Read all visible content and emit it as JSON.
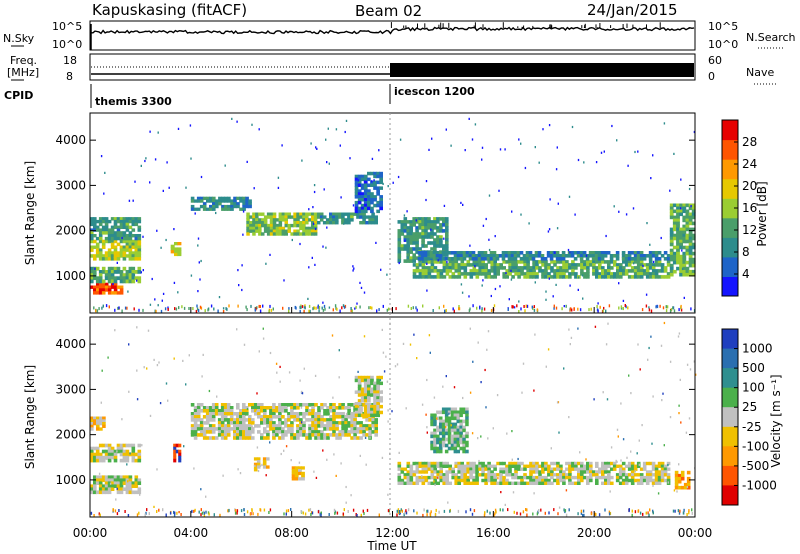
{
  "header": {
    "station": "Kapuskasing (fitACF)",
    "beam": "Beam 02",
    "date": "24/Jan/2015"
  },
  "noise_panel": {
    "left_label": "N.Sky",
    "right_label": "N.Search",
    "left_ticks": [
      "10^5",
      "10^0"
    ],
    "right_ticks": [
      "10^5",
      "10^0"
    ]
  },
  "freq_panel": {
    "left_label_line1": "Freq.",
    "left_label_line2": "[MHz]",
    "left_ticks": [
      "18",
      "8"
    ],
    "right_label": "Nave",
    "right_ticks": [
      "60",
      "0"
    ]
  },
  "cpid_panel": {
    "label": "CPID",
    "modes": [
      "themis 3300",
      "icescon 1200"
    ]
  },
  "power_scale": {
    "label": "Power [dB]",
    "ticks": [
      "28",
      "24",
      "20",
      "16",
      "12",
      "8",
      "4"
    ],
    "colors": [
      "#1414ff",
      "#1e64c8",
      "#2d8c8c",
      "#4a9e6a",
      "#9acd32",
      "#e6c800",
      "#ff9900",
      "#ff5500",
      "#e60000"
    ]
  },
  "velocity_scale": {
    "label": "Velocity [m s⁻¹]",
    "ticks": [
      "1000",
      "500",
      "100",
      "25",
      "-25",
      "-100",
      "-500",
      "-1000"
    ],
    "colors": [
      "#1f3fbf",
      "#2a6fb0",
      "#2f8f8f",
      "#4bb04b",
      "#c0c0c0",
      "#f0c000",
      "#ff9900",
      "#ff5500",
      "#e00000"
    ]
  },
  "axes": {
    "ylabel": "Slant Range [km]",
    "xlabel": "Time UT",
    "yticks": [
      "1000",
      "2000",
      "3000",
      "4000"
    ],
    "xticks": [
      "00:00",
      "04:00",
      "08:00",
      "12:00",
      "16:00",
      "20:00",
      "00:00"
    ]
  },
  "chart_data": [
    {
      "type": "heatmap",
      "title": "",
      "xlabel": "Time UT",
      "ylabel": "Slant Range [km]",
      "xlim": [
        0,
        24
      ],
      "ylim": [
        180,
        4600
      ],
      "colorbar": {
        "label": "Power [dB]",
        "range": [
          0,
          30
        ]
      },
      "regions": [
        {
          "t": [
            0.0,
            1.3
          ],
          "r": [
            600,
            850
          ],
          "value": 26
        },
        {
          "t": [
            0.0,
            2.0
          ],
          "r": [
            850,
            1200
          ],
          "value": 12
        },
        {
          "t": [
            0.0,
            2.0
          ],
          "r": [
            1350,
            1800
          ],
          "value": 16
        },
        {
          "t": [
            0.0,
            2.0
          ],
          "r": [
            1800,
            2300
          ],
          "value": 10
        },
        {
          "t": [
            3.2,
            3.6
          ],
          "r": [
            1450,
            1750
          ],
          "value": 18
        },
        {
          "t": [
            4.0,
            6.4
          ],
          "r": [
            2450,
            2750
          ],
          "value": 8
        },
        {
          "t": [
            6.2,
            9.0
          ],
          "r": [
            1900,
            2400
          ],
          "value": 14
        },
        {
          "t": [
            9.0,
            11.4
          ],
          "r": [
            2150,
            2400
          ],
          "value": 10
        },
        {
          "t": [
            10.5,
            11.6
          ],
          "r": [
            2400,
            3300
          ],
          "value": 6
        },
        {
          "t": [
            12.2,
            14.2
          ],
          "r": [
            1300,
            2300
          ],
          "value": 10
        },
        {
          "t": [
            12.8,
            23.0
          ],
          "r": [
            950,
            1350
          ],
          "value": 12
        },
        {
          "t": [
            13.0,
            23.0
          ],
          "r": [
            1350,
            1550
          ],
          "value": 8
        },
        {
          "t": [
            23.0,
            24.0
          ],
          "r": [
            1000,
            2600
          ],
          "value": 12
        }
      ]
    },
    {
      "type": "heatmap",
      "title": "",
      "xlabel": "Time UT",
      "ylabel": "Slant Range [km]",
      "xlim": [
        0,
        24
      ],
      "ylim": [
        180,
        4600
      ],
      "colorbar": {
        "label": "Velocity [m s⁻¹]",
        "range": [
          -1000,
          1000
        ]
      },
      "regions": [
        {
          "t": [
            0.0,
            2.0
          ],
          "r": [
            700,
            1100
          ],
          "value": 0
        },
        {
          "t": [
            0.0,
            2.0
          ],
          "r": [
            1400,
            1800
          ],
          "value": 0
        },
        {
          "t": [
            0.0,
            0.6
          ],
          "r": [
            2100,
            2400
          ],
          "value": -200
        },
        {
          "t": [
            3.3,
            3.6
          ],
          "r": [
            1400,
            1800
          ],
          "value": -900
        },
        {
          "t": [
            4.0,
            11.4
          ],
          "r": [
            1900,
            2700
          ],
          "value": 0
        },
        {
          "t": [
            6.5,
            7.1
          ],
          "r": [
            1200,
            1500
          ],
          "value": -200
        },
        {
          "t": [
            8.0,
            8.5
          ],
          "r": [
            1000,
            1300
          ],
          "value": -200
        },
        {
          "t": [
            10.5,
            11.6
          ],
          "r": [
            2400,
            3300
          ],
          "value": 0
        },
        {
          "t": [
            12.2,
            23.0
          ],
          "r": [
            900,
            1400
          ],
          "value": 0
        },
        {
          "t": [
            13.5,
            15.0
          ],
          "r": [
            1600,
            2600
          ],
          "value": 200
        },
        {
          "t": [
            23.2,
            23.8
          ],
          "r": [
            800,
            1200
          ],
          "value": -400
        }
      ]
    }
  ]
}
